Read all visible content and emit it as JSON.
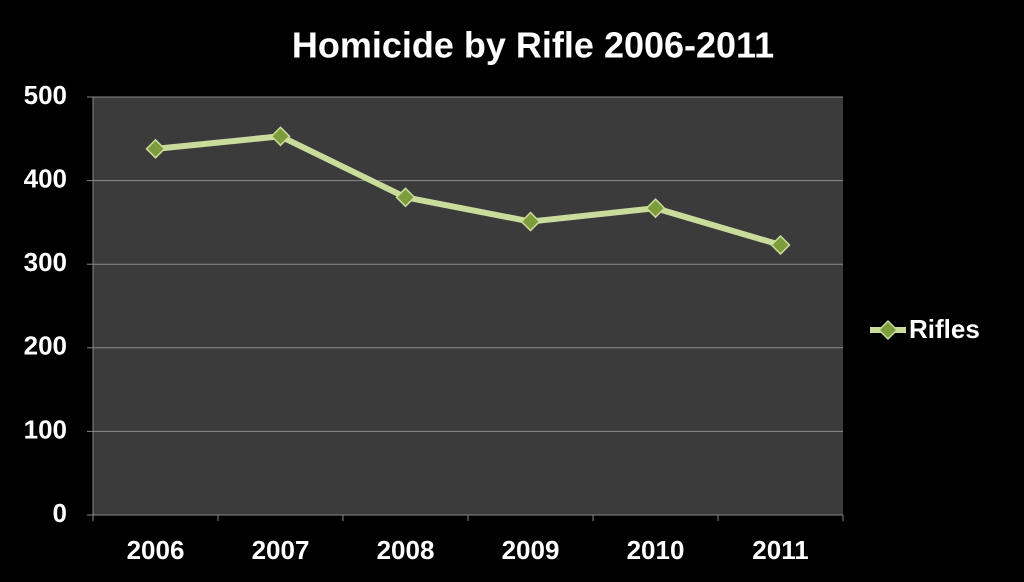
{
  "chart_data": {
    "type": "line",
    "title": "Homicide by Rifle 2006-2011",
    "categories": [
      "2006",
      "2007",
      "2008",
      "2009",
      "2010",
      "2011"
    ],
    "series": [
      {
        "name": "Rifles",
        "color": "#c9dc9b",
        "marker_color": "#7d9c3c",
        "values": [
          438,
          453,
          380,
          351,
          367,
          323
        ]
      }
    ],
    "ylim": [
      0,
      500
    ],
    "yticks": [
      0,
      100,
      200,
      300,
      400,
      500
    ],
    "grid": true,
    "legend": "right"
  }
}
